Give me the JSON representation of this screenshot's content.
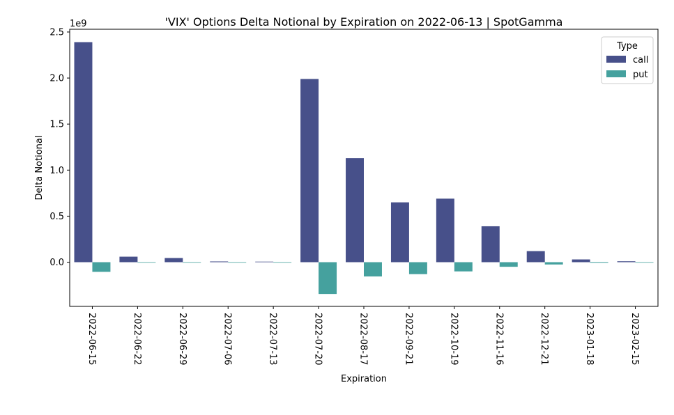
{
  "chart_data": {
    "type": "bar",
    "title": "'VIX' Options Delta Notional by Expiration on 2022-06-13 | SpotGamma",
    "xlabel": "Expiration",
    "ylabel": "Delta Notional",
    "y_offset_label": "1e9",
    "y_scale": 1000000000,
    "ylim": [
      -0.48,
      2.53
    ],
    "yticks": [
      0.0,
      0.5,
      1.0,
      1.5,
      2.0,
      2.5
    ],
    "ytick_labels": [
      "0.0",
      "0.5",
      "1.0",
      "1.5",
      "2.0",
      "2.5"
    ],
    "categories": [
      "2022-06-15",
      "2022-06-22",
      "2022-06-29",
      "2022-07-06",
      "2022-07-13",
      "2022-07-20",
      "2022-08-17",
      "2022-09-21",
      "2022-10-19",
      "2022-11-16",
      "2022-12-21",
      "2023-01-18",
      "2023-02-15"
    ],
    "legend": {
      "title": "Type",
      "placement": "top-right"
    },
    "series": [
      {
        "name": "call",
        "color": "#47508a",
        "values": [
          2.39,
          0.06,
          0.045,
          0.008,
          0.006,
          1.99,
          1.13,
          0.65,
          0.69,
          0.39,
          0.12,
          0.03,
          0.01
        ]
      },
      {
        "name": "put",
        "color": "#45a19e",
        "values": [
          -0.105,
          0,
          0,
          0,
          0,
          -0.345,
          -0.155,
          -0.13,
          -0.1,
          -0.05,
          -0.025,
          -0.008,
          -0.003
        ]
      }
    ]
  }
}
